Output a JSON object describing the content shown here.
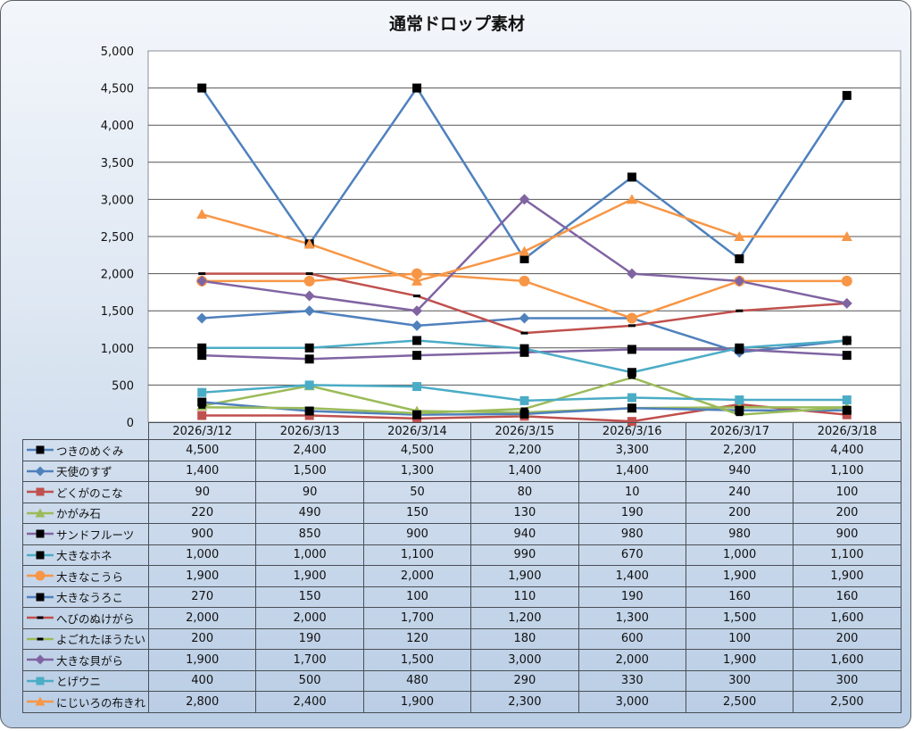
{
  "chart_data": {
    "type": "line",
    "title": "通常ドロップ素材",
    "xlabel": "",
    "ylabel": "",
    "ylim": [
      0,
      5000
    ],
    "yticks": [
      "0",
      "500",
      "1,000",
      "1,500",
      "2,000",
      "2,500",
      "3,000",
      "3,500",
      "4,000",
      "4,500",
      "5,000"
    ],
    "ytick_values": [
      0,
      500,
      1000,
      1500,
      2000,
      2500,
      3000,
      3500,
      4000,
      4500,
      5000
    ],
    "grid": true,
    "legend": "data-table-bottom",
    "categories": [
      "2026/3/12",
      "2026/3/13",
      "2026/3/14",
      "2026/3/15",
      "2026/3/16",
      "2026/3/17",
      "2026/3/18"
    ],
    "series": [
      {
        "name": "つきのめぐみ",
        "color": "#4f81bd",
        "marker": "square",
        "marker_color": "#000000",
        "values": [
          4500,
          2400,
          4500,
          2200,
          3300,
          2200,
          4400
        ],
        "labels": [
          "4,500",
          "2,400",
          "4,500",
          "2,200",
          "3,300",
          "2,200",
          "4,400"
        ]
      },
      {
        "name": "天使のすず",
        "color": "#4f81bd",
        "marker": "diamond",
        "marker_color": "#4f81bd",
        "values": [
          1400,
          1500,
          1300,
          1400,
          1400,
          940,
          1100
        ],
        "labels": [
          "1,400",
          "1,500",
          "1,300",
          "1,400",
          "1,400",
          "940",
          "1,100"
        ]
      },
      {
        "name": "どくがのこな",
        "color": "#c0504d",
        "marker": "square",
        "marker_color": "#c0504d",
        "values": [
          90,
          90,
          50,
          80,
          10,
          240,
          100
        ],
        "labels": [
          "90",
          "90",
          "50",
          "80",
          "10",
          "240",
          "100"
        ]
      },
      {
        "name": "かがみ石",
        "color": "#9bbb59",
        "marker": "triangle",
        "marker_color": "#9bbb59",
        "values": [
          220,
          490,
          150,
          130,
          190,
          200,
          200
        ],
        "labels": [
          "220",
          "490",
          "150",
          "130",
          "190",
          "200",
          "200"
        ]
      },
      {
        "name": "サンドフルーツ",
        "color": "#8064a2",
        "marker": "square",
        "marker_color": "#000000",
        "values": [
          900,
          850,
          900,
          940,
          980,
          980,
          900
        ],
        "labels": [
          "900",
          "850",
          "900",
          "940",
          "980",
          "980",
          "900"
        ]
      },
      {
        "name": "大きなホネ",
        "color": "#4bacc6",
        "marker": "square",
        "marker_color": "#000000",
        "values": [
          1000,
          1000,
          1100,
          990,
          670,
          1000,
          1100
        ],
        "labels": [
          "1,000",
          "1,000",
          "1,100",
          "990",
          "670",
          "1,000",
          "1,100"
        ]
      },
      {
        "name": "大きなこうら",
        "color": "#f79646",
        "marker": "circle",
        "marker_color": "#f79646",
        "values": [
          1900,
          1900,
          2000,
          1900,
          1400,
          1900,
          1900
        ],
        "labels": [
          "1,900",
          "1,900",
          "2,000",
          "1,900",
          "1,400",
          "1,900",
          "1,900"
        ]
      },
      {
        "name": "大きなうろこ",
        "color": "#4f81bd",
        "marker": "square",
        "marker_color": "#000000",
        "values": [
          270,
          150,
          100,
          110,
          190,
          160,
          160
        ],
        "labels": [
          "270",
          "150",
          "100",
          "110",
          "190",
          "160",
          "160"
        ]
      },
      {
        "name": "へびのぬけがら",
        "color": "#c0504d",
        "marker": "dash",
        "marker_color": "#000000",
        "values": [
          2000,
          2000,
          1700,
          1200,
          1300,
          1500,
          1600
        ],
        "labels": [
          "2,000",
          "2,000",
          "1,700",
          "1,200",
          "1,300",
          "1,500",
          "1,600"
        ]
      },
      {
        "name": "よごれたほうたい",
        "color": "#9bbb59",
        "marker": "dash",
        "marker_color": "#000000",
        "values": [
          200,
          190,
          120,
          180,
          600,
          100,
          200
        ],
        "labels": [
          "200",
          "190",
          "120",
          "180",
          "600",
          "100",
          "200"
        ]
      },
      {
        "name": "大きな貝がら",
        "color": "#8064a2",
        "marker": "diamond",
        "marker_color": "#8064a2",
        "values": [
          1900,
          1700,
          1500,
          3000,
          2000,
          1900,
          1600
        ],
        "labels": [
          "1,900",
          "1,700",
          "1,500",
          "3,000",
          "2,000",
          "1,900",
          "1,600"
        ]
      },
      {
        "name": "とげウニ",
        "color": "#4bacc6",
        "marker": "square",
        "marker_color": "#4bacc6",
        "values": [
          400,
          500,
          480,
          290,
          330,
          300,
          300
        ],
        "labels": [
          "400",
          "500",
          "480",
          "290",
          "330",
          "300",
          "300"
        ]
      },
      {
        "name": "にじいろの布きれ",
        "color": "#f79646",
        "marker": "triangle",
        "marker_color": "#f79646",
        "values": [
          2800,
          2400,
          1900,
          2300,
          3000,
          2500,
          2500
        ],
        "labels": [
          "2,800",
          "2,400",
          "1,900",
          "2,300",
          "3,000",
          "2,500",
          "2,500"
        ]
      }
    ]
  }
}
